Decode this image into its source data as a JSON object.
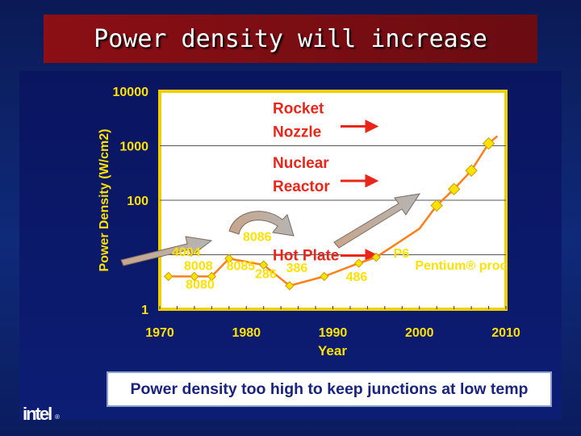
{
  "slide": {
    "title": "Power density will increase",
    "caption": "Power density too high to keep junctions at low temp",
    "logo_text": "intel",
    "logo_mark": "®"
  },
  "colors": {
    "plot_bg": "#ffffff",
    "axis_text": "#ffffff",
    "series": "#ff7f1a",
    "marker": "#ffe100",
    "ref_label": "#e8261a",
    "ref_line": "#555555",
    "arrow_red": "#e8261a",
    "chip_label": "#ffe100"
  },
  "chart_data": {
    "type": "line",
    "title": "",
    "xlabel": "Year",
    "ylabel": "Power Density (W/cm2)",
    "xlim": [
      1970,
      2010
    ],
    "ylim": [
      1,
      10000
    ],
    "yscale": "log",
    "xticks": [
      "1970",
      "1980",
      "1990",
      "2000",
      "2010"
    ],
    "yticks": [
      "1",
      "100",
      "1000",
      "10000"
    ],
    "ytick_values": [
      1,
      100,
      1000,
      10000
    ],
    "series": [
      {
        "x": [
          1971,
          1974,
          1976,
          1978,
          1982,
          1985,
          1989,
          1993,
          1995,
          2000,
          2002,
          2004,
          2006,
          2008,
          2009
        ],
        "y": [
          4,
          4,
          4,
          8.5,
          6.5,
          2.7,
          4,
          7,
          9,
          30,
          80,
          160,
          350,
          1100,
          1500
        ],
        "markers": [
          true,
          true,
          true,
          true,
          true,
          true,
          true,
          true,
          true,
          false,
          true,
          true,
          true,
          true,
          false
        ]
      }
    ],
    "chip_labels": [
      {
        "text": "4004",
        "x": 1971.4,
        "y": 9.4
      },
      {
        "text": "8008",
        "x": 1972.8,
        "y": 5.2
      },
      {
        "text": "8080",
        "x": 1973.0,
        "y": 2.4
      },
      {
        "text": "8086",
        "x": 1979.6,
        "y": 18
      },
      {
        "text": "8085",
        "x": 1977.7,
        "y": 5.2
      },
      {
        "text": "286",
        "x": 1981.0,
        "y": 3.7
      },
      {
        "text": "386",
        "x": 1984.6,
        "y": 4.8
      },
      {
        "text": "486",
        "x": 1991.5,
        "y": 3.3
      },
      {
        "text": "P6",
        "x": 1997.0,
        "y": 8.8
      },
      {
        "text": "Pentium® proc",
        "x": 1999.5,
        "y": 5.3
      }
    ],
    "reference_levels": [
      {
        "label_lines": [
          "Rocket",
          "Nozzle"
        ],
        "y": 1000
      },
      {
        "label_lines": [
          "Nuclear",
          "Reactor"
        ],
        "y": 100
      },
      {
        "label_lines": [
          "Hot Plate"
        ],
        "y": 10
      }
    ]
  }
}
